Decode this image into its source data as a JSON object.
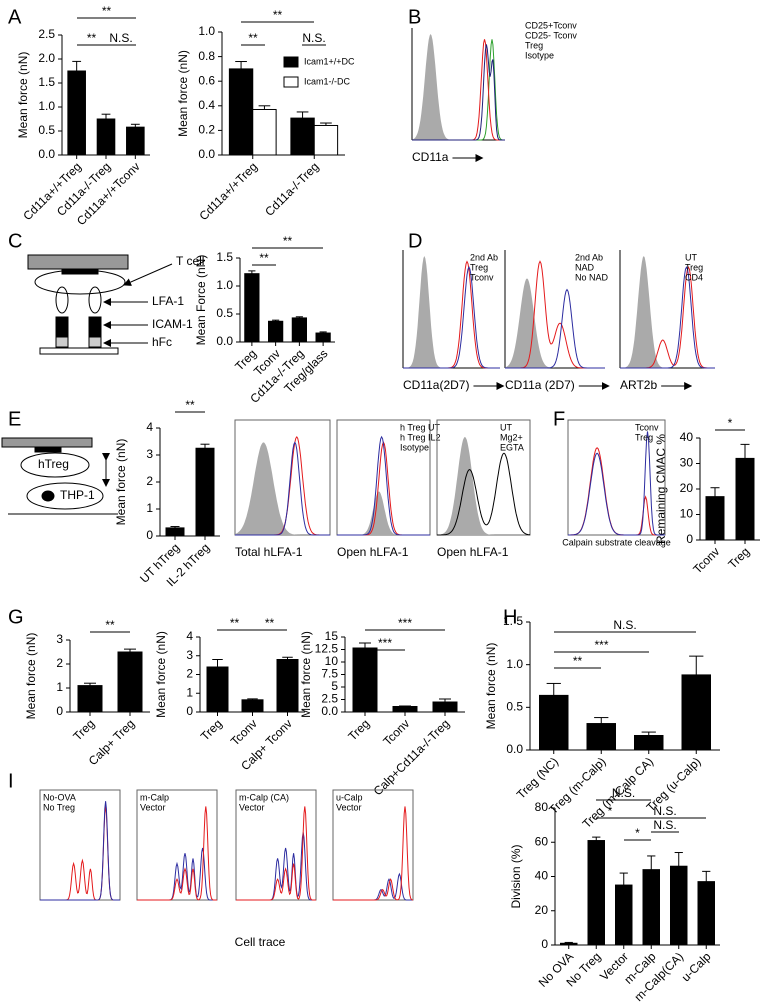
{
  "chart_data": [
    {
      "type": "bar",
      "y_label": "Mean force (nN)",
      "categories": [
        "Cd11a+/+Treg",
        "Cd11a-/-Treg",
        "Cd11a+/+Tconv"
      ],
      "values": [
        1.75,
        0.75,
        0.58
      ],
      "errors": [
        0.2,
        0.1,
        0.06
      ],
      "color": "#000000",
      "ylim": [
        0,
        2.5
      ],
      "yticks": [
        {
          "value": 0,
          "label": "0.0"
        },
        0.5,
        {
          "value": 1,
          "label": "1.0"
        },
        1.5,
        {
          "value": 2,
          "label": "2.0"
        },
        2.5
      ],
      "annotations": [
        "**",
        "**",
        "N.S."
      ]
    },
    {
      "type": "bar",
      "y_label": "Mean force (nN)",
      "categories": [
        "Cd11a+/+Treg",
        "Cd11a-/-Treg"
      ],
      "series": [
        {
          "name": "Icam1+/+DC",
          "color": "#000000",
          "values": [
            0.7,
            0.3
          ],
          "errors": [
            0.06,
            0.05
          ]
        },
        {
          "name": "Icam1-/-DC",
          "color": "#ffffff",
          "values": [
            0.37,
            0.24
          ],
          "errors": [
            0.03,
            0.02
          ]
        }
      ],
      "ylim": [
        0,
        1
      ],
      "yticks": [
        {
          "value": 0,
          "label": "0.0"
        },
        0.2,
        0.4,
        0.6,
        0.8,
        {
          "value": 1,
          "label": "1.0"
        }
      ],
      "annotations": [
        "**",
        "**",
        "N.S."
      ]
    },
    {
      "type": "bar",
      "y_label": "Mean Force (nN)",
      "categories": [
        "Treg",
        "Tconv",
        "Cd11a-/-Treg",
        "Treg/glass"
      ],
      "values": [
        1.22,
        0.37,
        0.43,
        0.16
      ],
      "errors": [
        0.05,
        0.02,
        0.02,
        0.02
      ],
      "color": "#000000",
      "ylim": [
        0,
        1.5
      ],
      "yticks": [
        {
          "value": 0,
          "label": "0.0"
        },
        0.5,
        {
          "value": 1,
          "label": "1.0"
        },
        1.5
      ],
      "annotations": [
        "**",
        "**"
      ]
    },
    {
      "type": "bar",
      "y_label": "Mean force (nN)",
      "categories": [
        "UT  hTreg",
        "IL-2 hTreg"
      ],
      "values": [
        0.3,
        3.25
      ],
      "errors": [
        0.05,
        0.15
      ],
      "color": "#000000",
      "ylim": [
        0,
        4
      ],
      "yticks": [
        0,
        1,
        2,
        3,
        4
      ],
      "annotations": [
        "**"
      ]
    },
    {
      "type": "bar",
      "y_label": "Remaining CMAC %",
      "categories": [
        "Tconv",
        "Treg"
      ],
      "values": [
        17,
        32
      ],
      "errors": [
        3.5,
        5.5
      ],
      "color": "#000000",
      "ylim": [
        0,
        40
      ],
      "yticks": [
        0,
        10,
        20,
        30,
        40
      ],
      "annotations": [
        "*"
      ]
    },
    {
      "type": "bar",
      "y_label": "Mean force (nN)",
      "categories": [
        "Treg",
        "Calp+ Treg"
      ],
      "values": [
        1.1,
        2.5
      ],
      "errors": [
        0.1,
        0.12
      ],
      "color": "#000000",
      "ylim": [
        0,
        3
      ],
      "yticks": [
        0,
        1,
        2,
        3
      ],
      "annotations": [
        "**"
      ]
    },
    {
      "type": "bar",
      "y_label": "Mean force (nN)",
      "categories": [
        "Treg",
        "Tconv",
        "Calp+ Tconv"
      ],
      "values": [
        2.4,
        0.65,
        2.8
      ],
      "errors": [
        0.4,
        0.05,
        0.12
      ],
      "color": "#000000",
      "ylim": [
        0,
        4
      ],
      "yticks": [
        0,
        1,
        2,
        3,
        4
      ],
      "annotations": [
        "**",
        "**"
      ]
    },
    {
      "type": "bar",
      "y_label": "Mean force (nN)",
      "categories": [
        "Treg",
        "Tconv",
        "Calp+Cd11a-/-Treg"
      ],
      "values": [
        12.8,
        1.1,
        2.0
      ],
      "errors": [
        1.0,
        0.1,
        0.6
      ],
      "color": "#000000",
      "ylim": [
        0,
        15
      ],
      "yticks": [
        {
          "value": 0,
          "label": "0.0"
        },
        2.5,
        5,
        7.5,
        10,
        12.5,
        15
      ],
      "annotations": [
        "***",
        "***"
      ]
    },
    {
      "type": "bar",
      "y_label": "Mean force (nN)",
      "categories": [
        "Treg (NC)",
        "Treg (m-Calp)",
        "Treg (m-Calp CA)",
        "Treg (u-Calp)"
      ],
      "values": [
        0.64,
        0.31,
        0.17,
        0.88
      ],
      "errors": [
        0.14,
        0.07,
        0.04,
        0.22
      ],
      "color": "#000000",
      "ylim": [
        0,
        1.5
      ],
      "yticks": [
        {
          "value": 0,
          "label": "0.0"
        },
        0.5,
        {
          "value": 1,
          "label": "1.0"
        },
        {
          "value": 1.5,
          "label": "1. 5"
        }
      ],
      "annotations": [
        "N.S.",
        "**",
        "***"
      ]
    },
    {
      "type": "bar",
      "y_label": "Division  (%)",
      "categories": [
        "No OVA",
        "No Treg",
        "Vector",
        "m-Calp",
        "m-Calp(CA)",
        "u-Calp"
      ],
      "values": [
        1,
        61,
        35,
        44,
        46,
        37
      ],
      "errors": [
        0.5,
        2,
        7,
        8,
        8,
        6
      ],
      "color": "#000000",
      "ylim": [
        0,
        80
      ],
      "yticks": [
        0,
        20,
        40,
        60,
        80
      ],
      "annotations": [
        "N.S.",
        "*",
        "N.S.",
        "*",
        "N.S."
      ]
    }
  ],
  "flow_panels": [
    {
      "legend": [
        {
          "text": "CD25+Tconv",
          "color": "#2ca02c"
        },
        {
          "text": "CD25- Tconv",
          "color": "#e41a1c"
        },
        {
          "text": "Treg",
          "color": "#1f1f7a"
        },
        {
          "text": "Isotype",
          "color": "#999999"
        }
      ],
      "xlabel": "CD11a"
    },
    {
      "legend": [
        {
          "text": "2nd Ab",
          "color": "#999999"
        },
        {
          "text": "Treg",
          "color": "#e41a1c"
        },
        {
          "text": "Tconv",
          "color": "#2c2ca0"
        }
      ],
      "xlabel": "CD11a(2D7)"
    },
    {
      "legend": [
        {
          "text": "2nd Ab",
          "color": "#999999"
        },
        {
          "text": "NAD",
          "color": "#e41a1c"
        },
        {
          "text": "No NAD",
          "color": "#2c2ca0"
        }
      ],
      "xlabel": "CD11a (2D7)"
    },
    {
      "legend": [
        {
          "text": "UT",
          "color": "#999999"
        },
        {
          "text": "Treg",
          "color": "#e41a1c"
        },
        {
          "text": "CD4",
          "color": "#2c2ca0"
        }
      ],
      "xlabel": "ART2b"
    },
    {
      "legend": [],
      "xlabel": "Total hLFA-1"
    },
    {
      "legend": [
        {
          "text": "h Treg UT",
          "color": "#e41a1c"
        },
        {
          "text": "h Treg IL2",
          "color": "#2c2ca0"
        },
        {
          "text": "Isotype",
          "color": "#666666"
        }
      ],
      "xlabel": "Open hLFA-1"
    },
    {
      "legend": [
        {
          "text": "UT",
          "color": "#999999"
        },
        {
          "text": "Mg2+",
          "color": "#000000"
        },
        {
          "text": "EGTA",
          "color": "#000000"
        }
      ],
      "xlabel": "Open hLFA-1"
    },
    {
      "legend": [
        {
          "text": "Tconv",
          "color": "#2c2ca0"
        },
        {
          "text": "Treg",
          "color": "#e41a1c"
        }
      ],
      "xlabel": "Calpain substrate cleavage"
    },
    {
      "legend": [
        {
          "text": "No-OVA",
          "color": "#2c2ca0"
        },
        {
          "text": "No Treg",
          "color": "#e41a1c"
        }
      ],
      "xlabel": ""
    },
    {
      "legend": [
        {
          "text": "m-Calp",
          "color": "#2c2ca0"
        },
        {
          "text": "Vector",
          "color": "#e41a1c"
        }
      ],
      "xlabel": ""
    },
    {
      "legend": [
        {
          "text": "m-Calp (CA)",
          "color": "#2c2ca0"
        },
        {
          "text": "Vector",
          "color": "#e41a1c"
        }
      ],
      "xlabel": ""
    },
    {
      "legend": [
        {
          "text": "u-Calp",
          "color": "#2c2ca0"
        },
        {
          "text": "Vector",
          "color": "#e41a1c"
        }
      ],
      "xlabel": ""
    }
  ],
  "panel_labels": [
    "A",
    "B",
    "C",
    "D",
    "E",
    "F",
    "G",
    "H",
    "I"
  ],
  "schematic": {
    "c_labels": [
      "T cell",
      "LFA-1",
      "ICAM-1",
      "hFc"
    ],
    "e_labels": [
      "hTreg",
      "THP-1"
    ]
  },
  "shared_xlabel": "Cell trace"
}
